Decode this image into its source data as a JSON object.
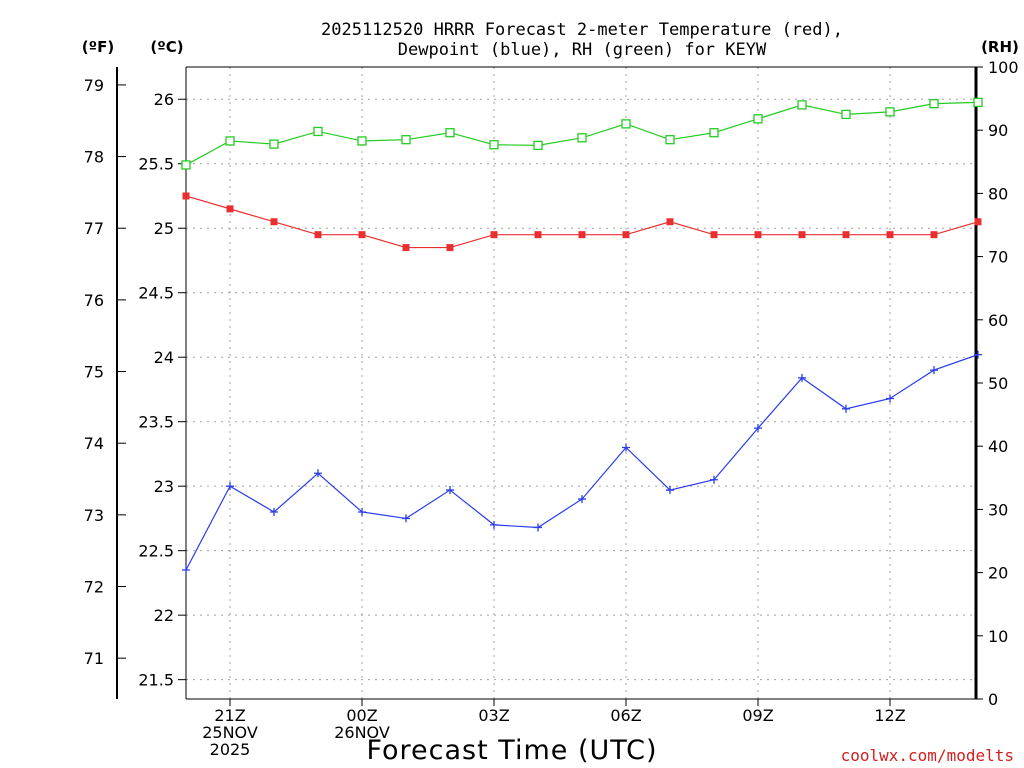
{
  "title": {
    "line1": "2025112520 HRRR Forecast 2-meter Temperature (red),",
    "line2": "Dewpoint (blue), RH (green) for KEYW"
  },
  "axis_units": {
    "fahrenheit": "(ºF)",
    "celsius": "(ºC)",
    "rh": "(RH)"
  },
  "xlabel": "Forecast Time (UTC)",
  "credit": "coolwx.com/modelts",
  "colors": {
    "temperature": "#e83030",
    "dewpoint": "#2a3bea",
    "rh": "#22cc22",
    "grid": "#a0a0a0",
    "credit": "#d02020"
  },
  "chart_data": {
    "type": "line",
    "title": "2025112520 HRRR Forecast 2-meter Temperature (red), Dewpoint (blue), RH (green) for KEYW",
    "x": [
      0,
      1,
      2,
      3,
      4,
      5,
      6,
      7,
      8,
      9,
      10,
      11,
      12,
      13,
      14,
      15,
      16,
      17,
      18
    ],
    "x_tick_labels": [
      {
        "x": 1,
        "line1": "21Z",
        "line2": "25NOV",
        "line3": "2025"
      },
      {
        "x": 4,
        "line1": "00Z",
        "line2": "26NOV",
        "line3": ""
      },
      {
        "x": 7,
        "line1": "03Z",
        "line2": "",
        "line3": ""
      },
      {
        "x": 10,
        "line1": "06Z",
        "line2": "",
        "line3": ""
      },
      {
        "x": 13,
        "line1": "09Z",
        "line2": "",
        "line3": ""
      },
      {
        "x": 16,
        "line1": "12Z",
        "line2": "",
        "line3": ""
      }
    ],
    "celsius_axis": {
      "ylim": [
        21.35,
        26.25
      ],
      "ticks": [
        "21.5",
        "22",
        "22.5",
        "23",
        "23.5",
        "24",
        "24.5",
        "25",
        "25.5",
        "26"
      ]
    },
    "fahrenheit_axis": {
      "ticks": [
        "71",
        "72",
        "73",
        "74",
        "75",
        "76",
        "77",
        "78",
        "79"
      ]
    },
    "rh_axis": {
      "ylim": [
        0,
        100
      ],
      "ticks": [
        "0",
        "10",
        "20",
        "30",
        "40",
        "50",
        "60",
        "70",
        "80",
        "90",
        "100"
      ]
    },
    "series": [
      {
        "name": "Temperature",
        "axis": "celsius",
        "marker": "filled-square",
        "values": [
          25.25,
          25.15,
          25.05,
          24.95,
          24.95,
          24.85,
          24.85,
          24.95,
          24.95,
          24.95,
          24.95,
          25.05,
          24.95,
          24.95,
          24.95,
          24.95,
          24.95,
          24.95,
          25.05
        ]
      },
      {
        "name": "Dewpoint",
        "axis": "celsius",
        "marker": "plus",
        "values": [
          22.35,
          23.0,
          22.8,
          23.1,
          22.8,
          22.75,
          22.97,
          22.7,
          22.68,
          22.9,
          23.3,
          22.97,
          23.05,
          23.45,
          23.84,
          23.6,
          23.68,
          23.9,
          24.02
        ]
      },
      {
        "name": "RH",
        "axis": "rh",
        "marker": "open-square",
        "values": [
          84.5,
          88.3,
          87.8,
          89.8,
          88.3,
          88.5,
          89.6,
          87.7,
          87.6,
          88.8,
          91.0,
          88.5,
          89.6,
          91.8,
          94.0,
          92.5,
          92.9,
          94.2,
          94.4
        ]
      }
    ]
  }
}
